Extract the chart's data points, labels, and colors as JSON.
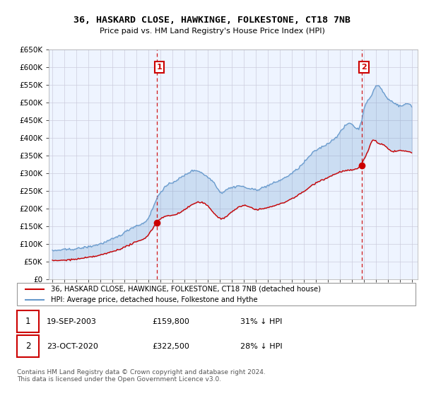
{
  "title": "36, HASKARD CLOSE, HAWKINGE, FOLKESTONE, CT18 7NB",
  "subtitle": "Price paid vs. HM Land Registry's House Price Index (HPI)",
  "legend_line1": "36, HASKARD CLOSE, HAWKINGE, FOLKESTONE, CT18 7NB (detached house)",
  "legend_line2": "HPI: Average price, detached house, Folkestone and Hythe",
  "footnote": "Contains HM Land Registry data © Crown copyright and database right 2024.\nThis data is licensed under the Open Government Licence v3.0.",
  "sale1_date": "19-SEP-2003",
  "sale1_price": "£159,800",
  "sale1_hpi": "31% ↓ HPI",
  "sale2_date": "23-OCT-2020",
  "sale2_price": "£322,500",
  "sale2_hpi": "28% ↓ HPI",
  "ylim": [
    0,
    650000
  ],
  "yticks": [
    0,
    50000,
    100000,
    150000,
    200000,
    250000,
    300000,
    350000,
    400000,
    450000,
    500000,
    550000,
    600000,
    650000
  ],
  "ytick_labels": [
    "£0",
    "£50K",
    "£100K",
    "£150K",
    "£200K",
    "£250K",
    "£300K",
    "£350K",
    "£400K",
    "£450K",
    "£500K",
    "£550K",
    "£600K",
    "£650K"
  ],
  "xlim_start": 1994.7,
  "xlim_end": 2025.5,
  "property_color": "#cc0000",
  "hpi_color": "#6699cc",
  "hpi_fill_color": "#ddeeff",
  "sale1_year": 2003.72,
  "sale1_value": 159800,
  "sale2_year": 2020.81,
  "sale2_value": 322500,
  "background_color": "#ffffff",
  "grid_color": "#ccccdd",
  "plot_bg_color": "#eef4ff"
}
